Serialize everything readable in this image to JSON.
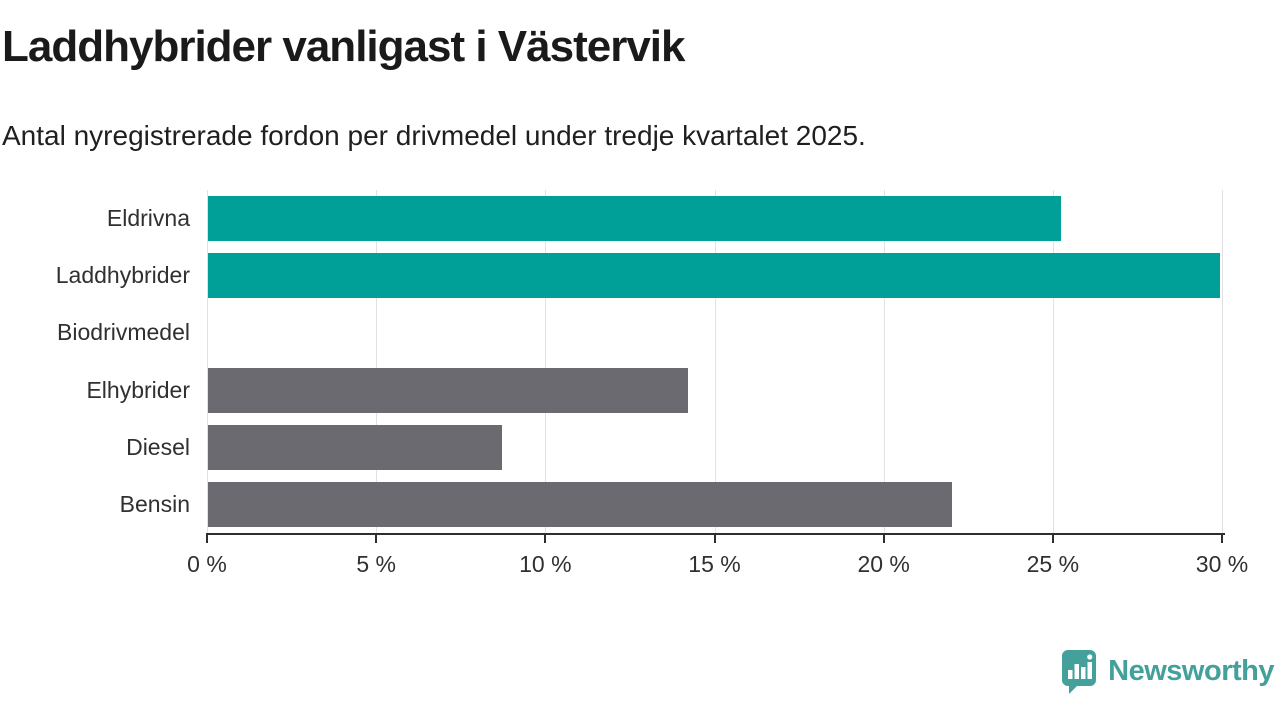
{
  "header": {
    "title": "Laddhybrider vanligast i Västervik",
    "subtitle": "Antal nyregistrerade fordon per drivmedel under tredje kvartalet 2025."
  },
  "chart_data": {
    "type": "bar",
    "orientation": "horizontal",
    "title": "Laddhybrider vanligast i Västervik",
    "subtitle": "Antal nyregistrerade fordon per drivmedel under tredje kvartalet 2025.",
    "categories": [
      "Eldrivna",
      "Laddhybrider",
      "Biodrivmedel",
      "Elhybrider",
      "Diesel",
      "Bensin"
    ],
    "values": [
      25.2,
      29.9,
      0,
      14.2,
      8.7,
      22.0
    ],
    "unit": "%",
    "bar_colors": [
      "#00A099",
      "#00A099",
      "#00A099",
      "#6B6A70",
      "#6B6A70",
      "#6B6A70"
    ],
    "highlighted": [
      true,
      true,
      false,
      false,
      false,
      false
    ],
    "xlim": [
      0,
      30
    ],
    "x_ticks": [
      0,
      5,
      10,
      15,
      20,
      25,
      30
    ],
    "x_tick_labels": [
      "0 %",
      "5 %",
      "10 %",
      "15 %",
      "20 %",
      "25 %",
      "30 %"
    ],
    "grid": true,
    "legend": false,
    "xlabel": "",
    "ylabel": ""
  },
  "colors": {
    "highlight_bar": "#00A099",
    "default_bar": "#6B6A70",
    "grid": "#E2E2E2",
    "axis": "#2E2E2E",
    "text": "#1A1A1A",
    "brand": "#43A09A"
  },
  "footer": {
    "brand": "Newsworthy",
    "logo_icon": "bar-chart-speech-bubble-icon"
  }
}
